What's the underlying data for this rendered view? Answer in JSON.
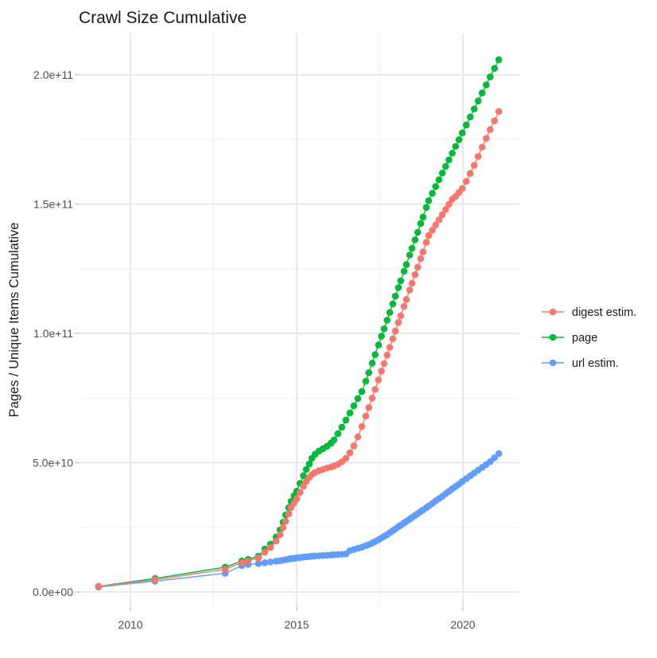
{
  "title": "Crawl Size Cumulative",
  "axes": {
    "y_title": "Pages / Unique Items Cumulative",
    "y_tick_labels": [
      "0.0e+00",
      "5.0e+10",
      "1.0e+11",
      "1.5e+11",
      "2.0e+11"
    ],
    "x_tick_labels": [
      "2010",
      "2015",
      "2020"
    ]
  },
  "legend": [
    {
      "label": "digest estim.",
      "color": "#F8766D"
    },
    {
      "label": "page",
      "color": "#00BA38"
    },
    {
      "label": "url estim.",
      "color": "#619CFF"
    }
  ],
  "colors": {
    "digest": "#F8766D",
    "page": "#00BA38",
    "url": "#619CFF",
    "grid_major": "#E2E2E2",
    "grid_minor": "#F0F0F0",
    "tick_mark": "#C8C8C8",
    "tick_label": "#4D4D4D",
    "text": "#1A1A1A"
  },
  "chart_data": {
    "type": "scatter",
    "title": "Crawl Size Cumulative",
    "xlabel": "",
    "ylabel": "Pages / Unique Items Cumulative",
    "legend_position": "right",
    "grid": true,
    "xlim": [
      2008.6,
      2021.7
    ],
    "ylim": [
      0,
      210
    ],
    "x_major_ticks": [
      2010,
      2015,
      2020
    ],
    "x_minor_ticks": [
      2012.5,
      2017.5,
      2022.5
    ],
    "y_major_ticks_e9": [
      0,
      50,
      100,
      150,
      200
    ],
    "y_minor_ticks_e9": [
      25,
      75,
      125,
      175
    ],
    "y_values_unit": "billions (value * 1e9 items)",
    "x": [
      2009.04,
      2010.74,
      2012.85,
      2013.35,
      2013.54,
      2013.85,
      2014.04,
      2014.21,
      2014.38,
      2014.5,
      2014.59,
      2014.67,
      2014.76,
      2014.83,
      2014.92,
      2015.0,
      2015.1,
      2015.2,
      2015.29,
      2015.38,
      2015.46,
      2015.55,
      2015.67,
      2015.79,
      2015.91,
      2016.03,
      2016.12,
      2016.24,
      2016.36,
      2016.48,
      2016.6,
      2016.72,
      2016.84,
      2016.96,
      2017.08,
      2017.17,
      2017.27,
      2017.36,
      2017.46,
      2017.55,
      2017.63,
      2017.72,
      2017.8,
      2017.89,
      2017.97,
      2018.06,
      2018.13,
      2018.23,
      2018.3,
      2018.4,
      2018.47,
      2018.56,
      2018.64,
      2018.73,
      2018.8,
      2018.9,
      2018.97,
      2019.08,
      2019.18,
      2019.28,
      2019.38,
      2019.48,
      2019.58,
      2019.68,
      2019.78,
      2019.88,
      2019.98,
      2020.1,
      2020.22,
      2020.34,
      2020.46,
      2020.58,
      2020.7,
      2020.82,
      2020.95,
      2021.08
    ],
    "series": [
      {
        "name": "digest estim.",
        "color": "#F8766D",
        "values_e9": [
          2.2,
          4.7,
          8.8,
          11.4,
          12.0,
          13.2,
          15.4,
          17.2,
          19.7,
          22.2,
          24.9,
          27.4,
          30.2,
          32.6,
          34.4,
          36.0,
          38.5,
          40.9,
          42.8,
          44.3,
          45.4,
          46.2,
          46.9,
          47.4,
          47.9,
          48.3,
          48.7,
          49.4,
          50.3,
          51.7,
          53.8,
          56.5,
          60.0,
          64.0,
          68.0,
          71.3,
          75.0,
          78.3,
          82.0,
          85.4,
          88.3,
          91.6,
          94.6,
          97.9,
          100.9,
          104.2,
          106.8,
          110.5,
          113.1,
          116.8,
          119.4,
          122.7,
          125.6,
          129.0,
          131.5,
          135.2,
          137.8,
          139.9,
          141.9,
          143.9,
          145.9,
          147.9,
          149.9,
          151.9,
          153.0,
          154.5,
          156.0,
          158.8,
          161.8,
          165.0,
          168.4,
          172.0,
          175.4,
          178.8,
          182.2,
          185.8
        ]
      },
      {
        "name": "page",
        "color": "#00BA38",
        "values_e9": [
          2.2,
          5.2,
          9.6,
          12.0,
          12.6,
          13.8,
          16.6,
          18.5,
          21.2,
          24.0,
          27.0,
          29.8,
          32.6,
          35.0,
          37.2,
          39.0,
          42.0,
          45.0,
          47.4,
          49.5,
          51.7,
          53.2,
          54.5,
          55.4,
          56.3,
          57.5,
          58.8,
          61.2,
          63.7,
          66.5,
          69.2,
          72.0,
          74.8,
          77.5,
          81.5,
          84.8,
          88.5,
          91.8,
          95.5,
          98.9,
          101.8,
          105.1,
          108.1,
          111.4,
          114.4,
          117.7,
          120.3,
          124.0,
          126.6,
          130.3,
          132.9,
          136.2,
          139.1,
          142.5,
          145.0,
          148.7,
          151.3,
          154.2,
          156.8,
          159.4,
          162.0,
          164.6,
          167.1,
          169.7,
          172.3,
          174.9,
          177.5,
          180.6,
          183.7,
          186.8,
          189.9,
          193.0,
          196.1,
          199.2,
          202.5,
          205.8
        ]
      },
      {
        "name": "url estim.",
        "color": "#619CFF",
        "values_e9": [
          1.9,
          4.2,
          7.2,
          10.2,
          10.6,
          11.0,
          11.3,
          11.6,
          11.9,
          12.1,
          12.3,
          12.5,
          12.7,
          12.9,
          13.0,
          13.2,
          13.3,
          13.5,
          13.6,
          13.7,
          13.8,
          13.9,
          14.0,
          14.1,
          14.2,
          14.3,
          14.4,
          14.5,
          14.6,
          14.7,
          16.0,
          16.4,
          16.9,
          17.3,
          17.9,
          18.3,
          18.9,
          19.5,
          20.2,
          20.9,
          21.5,
          22.2,
          22.9,
          23.7,
          24.4,
          25.2,
          25.8,
          26.7,
          27.3,
          28.2,
          28.8,
          29.6,
          30.3,
          31.1,
          31.7,
          32.6,
          33.2,
          34.2,
          35.2,
          36.1,
          37.0,
          38.0,
          38.9,
          39.9,
          40.8,
          41.7,
          42.7,
          43.8,
          44.9,
          46.0,
          47.1,
          48.2,
          49.3,
          50.4,
          51.9,
          53.5
        ]
      }
    ]
  }
}
